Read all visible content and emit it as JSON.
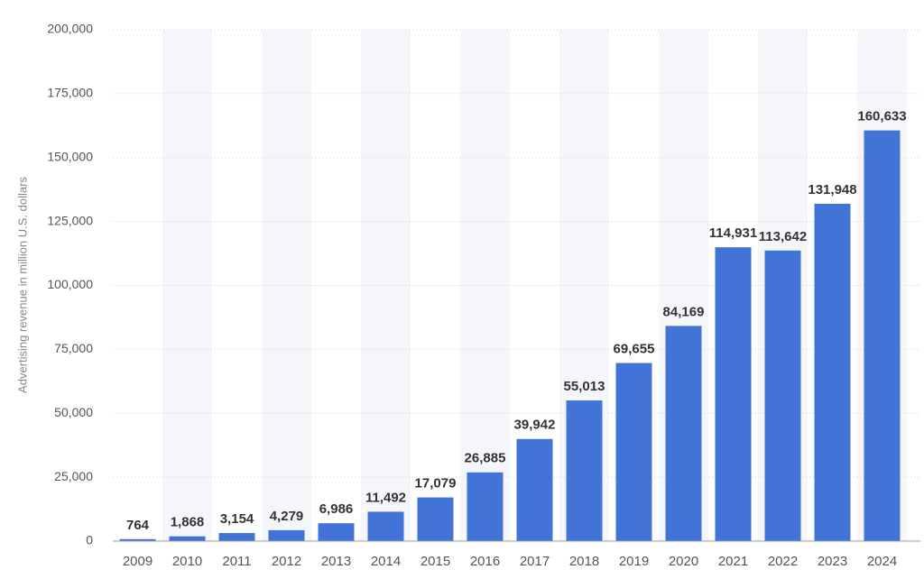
{
  "chart_data": {
    "type": "bar",
    "y_label": "Advertising revenue in million U.S. dollars",
    "categories": [
      "2009",
      "2010",
      "2011",
      "2012",
      "2013",
      "2014",
      "2015",
      "2016",
      "2017",
      "2018",
      "2019",
      "2020",
      "2021",
      "2022",
      "2023",
      "2024"
    ],
    "values": [
      764,
      1868,
      3154,
      4279,
      6986,
      11492,
      17079,
      26885,
      39942,
      55013,
      69655,
      84169,
      114931,
      113642,
      131948,
      160633
    ],
    "value_labels": [
      "764",
      "1,868",
      "3,154",
      "4,279",
      "6,986",
      "11,492",
      "17,079",
      "26,885",
      "39,942",
      "55,013",
      "69,655",
      "84,169",
      "114,931",
      "113,642",
      "131,948",
      "160,633"
    ],
    "color": "#4174d6",
    "ylim": [
      0,
      200000
    ],
    "yticks": [
      0,
      {
        "value": 25000,
        "label": "25,000"
      },
      {
        "value": 50000,
        "label": "50,000"
      },
      {
        "value": 75000,
        "label": "75,000"
      },
      {
        "value": 100000,
        "label": "100,000"
      },
      {
        "value": 125000,
        "label": "125,000"
      },
      {
        "value": 150000,
        "label": "150,000"
      },
      {
        "value": 175000,
        "label": "175,000"
      },
      {
        "value": 200000,
        "label": "200,000"
      }
    ],
    "grid": true
  }
}
